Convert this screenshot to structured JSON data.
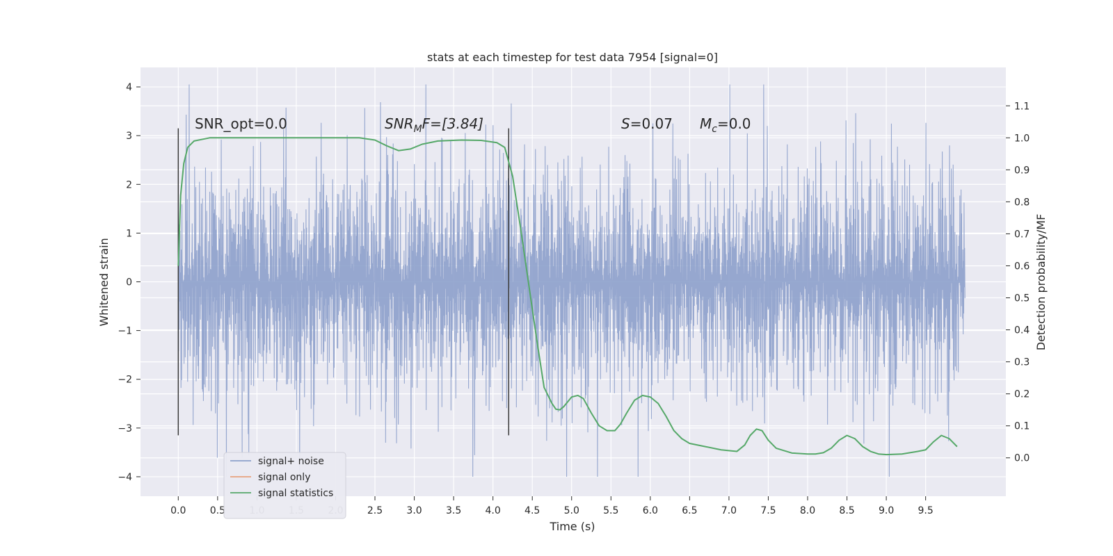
{
  "chart_data": {
    "type": "line",
    "title": "stats at each timestep for test data 7954 [signal=0]",
    "xlabel": "Time (s)",
    "ylabel": "Whitened strain",
    "y2label": "Detection probability/MF",
    "xlim": [
      -0.48,
      10.52
    ],
    "ylim": [
      -4.4,
      4.4
    ],
    "y2lim": [
      -0.12,
      1.22
    ],
    "x_ticks": [
      "0.0",
      "0.5",
      "1.0",
      "1.5",
      "2.0",
      "2.5",
      "3.0",
      "3.5",
      "4.0",
      "4.5",
      "5.0",
      "5.5",
      "6.0",
      "6.5",
      "7.0",
      "7.5",
      "8.0",
      "8.5",
      "9.0",
      "9.5"
    ],
    "y_ticks": [
      "4",
      "3",
      "2",
      "1",
      "0",
      "−1",
      "−2",
      "−3",
      "−4"
    ],
    "y2_ticks": [
      "1.1",
      "1.0",
      "0.9",
      "0.8",
      "0.7",
      "0.6",
      "0.5",
      "0.4",
      "0.3",
      "0.2",
      "0.1",
      "0.0"
    ],
    "grid": true,
    "legend_position": "lower-left",
    "annotations": {
      "snr_opt": "SNR_opt=0.0",
      "snr_mf_main": "SNR",
      "snr_mf_sub": "M",
      "snr_mf_rest": "F=[3.84]",
      "s_italic": "S",
      "s_value": "=0.07",
      "mc_main": "M",
      "mc_sub": "c",
      "mc_value": "=0.0"
    },
    "vertical_markers": [
      0.0,
      4.2
    ],
    "series": [
      {
        "name": "signal+ noise",
        "color": "#8da0cb",
        "description_range": [
          0.0,
          10.0
        ],
        "amplitude_bounds": [
          -4.0,
          4.05
        ]
      },
      {
        "name": "signal only",
        "color": "#e8a07d",
        "values": []
      },
      {
        "name": "signal statistics",
        "color": "#55a868",
        "axis": "right",
        "x": [
          0.0,
          0.03,
          0.07,
          0.12,
          0.2,
          0.4,
          1.0,
          2.0,
          2.3,
          2.5,
          2.65,
          2.8,
          2.95,
          3.1,
          3.3,
          3.6,
          3.85,
          4.05,
          4.15,
          4.25,
          4.35,
          4.45,
          4.55,
          4.65,
          4.75,
          4.8,
          4.85,
          4.9,
          5.0,
          5.08,
          5.15,
          5.25,
          5.35,
          5.45,
          5.55,
          5.62,
          5.7,
          5.8,
          5.9,
          6.0,
          6.1,
          6.2,
          6.3,
          6.4,
          6.5,
          6.7,
          6.9,
          7.1,
          7.2,
          7.27,
          7.35,
          7.42,
          7.5,
          7.6,
          7.8,
          8.0,
          8.1,
          8.2,
          8.3,
          8.4,
          8.5,
          8.6,
          8.7,
          8.8,
          8.9,
          9.0,
          9.2,
          9.4,
          9.5,
          9.6,
          9.7,
          9.8,
          9.9
        ],
        "values": [
          0.6,
          0.82,
          0.92,
          0.97,
          0.99,
          1.0,
          1.0,
          1.0,
          1.0,
          0.993,
          0.975,
          0.96,
          0.965,
          0.98,
          0.99,
          0.993,
          0.992,
          0.985,
          0.97,
          0.88,
          0.72,
          0.55,
          0.38,
          0.22,
          0.17,
          0.152,
          0.15,
          0.16,
          0.19,
          0.195,
          0.185,
          0.14,
          0.1,
          0.085,
          0.085,
          0.105,
          0.14,
          0.18,
          0.195,
          0.19,
          0.17,
          0.13,
          0.085,
          0.06,
          0.045,
          0.035,
          0.025,
          0.02,
          0.04,
          0.07,
          0.09,
          0.085,
          0.055,
          0.03,
          0.015,
          0.012,
          0.012,
          0.016,
          0.03,
          0.055,
          0.07,
          0.06,
          0.035,
          0.02,
          0.012,
          0.01,
          0.012,
          0.02,
          0.025,
          0.05,
          0.07,
          0.06,
          0.035
        ]
      }
    ]
  }
}
